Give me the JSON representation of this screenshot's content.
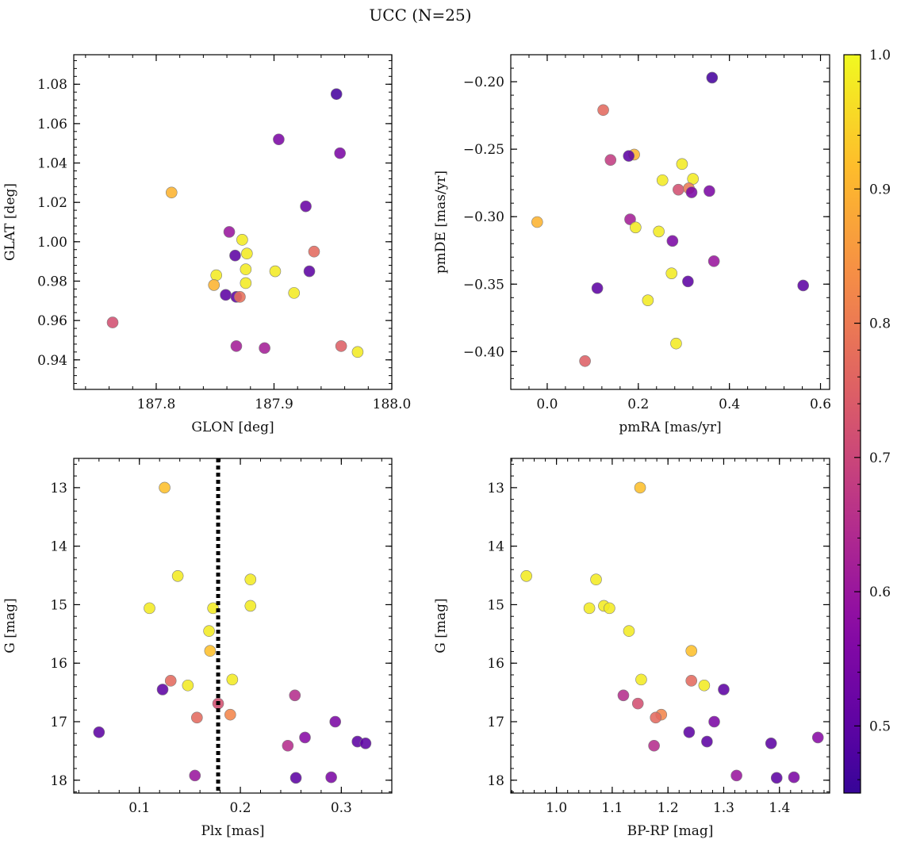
{
  "figure": {
    "title": "UCC (N=25)"
  },
  "colorbar": {
    "min": 0.45,
    "max": 1.0,
    "ticks": [
      0.5,
      0.6,
      0.7,
      0.8,
      0.9,
      1.0
    ],
    "tick_labels": [
      "0.5",
      "0.6",
      "0.7",
      "0.8",
      "0.9",
      "1.0"
    ],
    "colormap": "plasma"
  },
  "chart_data": [
    {
      "type": "scatter",
      "panel": "top-left",
      "xlabel": "GLON [deg]",
      "ylabel": "GLAT [deg]",
      "xlim": [
        187.73,
        188.0
      ],
      "ylim": [
        0.925,
        1.095
      ],
      "xticks": [
        187.8,
        187.9,
        188.0
      ],
      "xtick_labels": [
        "187.8",
        "187.9",
        "188.0"
      ],
      "yticks": [
        0.94,
        0.96,
        0.98,
        1.0,
        1.02,
        1.04,
        1.06,
        1.08
      ],
      "ytick_labels": [
        "0.94",
        "0.96",
        "0.98",
        "1.00",
        "1.02",
        "1.04",
        "1.06",
        "1.08"
      ],
      "reverse_y": false,
      "vline": null,
      "points": [
        {
          "x": 187.953,
          "y": 1.075,
          "c": 0.47
        },
        {
          "x": 187.904,
          "y": 1.052,
          "c": 0.55
        },
        {
          "x": 187.956,
          "y": 1.045,
          "c": 0.55
        },
        {
          "x": 187.813,
          "y": 1.025,
          "c": 0.9
        },
        {
          "x": 187.927,
          "y": 1.018,
          "c": 0.52
        },
        {
          "x": 187.862,
          "y": 1.005,
          "c": 0.6
        },
        {
          "x": 187.873,
          "y": 1.001,
          "c": 0.98
        },
        {
          "x": 187.934,
          "y": 0.995,
          "c": 0.77
        },
        {
          "x": 187.867,
          "y": 0.993,
          "c": 0.5
        },
        {
          "x": 187.877,
          "y": 0.994,
          "c": 0.98
        },
        {
          "x": 187.876,
          "y": 0.986,
          "c": 0.98
        },
        {
          "x": 187.901,
          "y": 0.985,
          "c": 0.98
        },
        {
          "x": 187.93,
          "y": 0.985,
          "c": 0.5
        },
        {
          "x": 187.851,
          "y": 0.983,
          "c": 0.98
        },
        {
          "x": 187.849,
          "y": 0.978,
          "c": 0.9
        },
        {
          "x": 187.876,
          "y": 0.979,
          "c": 0.98
        },
        {
          "x": 187.917,
          "y": 0.974,
          "c": 0.98
        },
        {
          "x": 187.859,
          "y": 0.973,
          "c": 0.5
        },
        {
          "x": 187.868,
          "y": 0.972,
          "c": 0.5
        },
        {
          "x": 187.871,
          "y": 0.972,
          "c": 0.78
        },
        {
          "x": 187.763,
          "y": 0.959,
          "c": 0.72
        },
        {
          "x": 187.868,
          "y": 0.947,
          "c": 0.62
        },
        {
          "x": 187.892,
          "y": 0.946,
          "c": 0.62
        },
        {
          "x": 187.957,
          "y": 0.947,
          "c": 0.75
        },
        {
          "x": 187.971,
          "y": 0.944,
          "c": 0.98
        }
      ]
    },
    {
      "type": "scatter",
      "panel": "top-right",
      "xlabel": "pmRA [mas/yr]",
      "ylabel": "pmDE [mas/yr]",
      "xlim": [
        -0.08,
        0.62
      ],
      "ylim": [
        -0.428,
        -0.18
      ],
      "xticks": [
        0.0,
        0.2,
        0.4,
        0.6
      ],
      "xtick_labels": [
        "0.0",
        "0.2",
        "0.4",
        "0.6"
      ],
      "yticks": [
        -0.4,
        -0.35,
        -0.3,
        -0.25,
        -0.2
      ],
      "ytick_labels": [
        "−0.40",
        "−0.35",
        "−0.30",
        "−0.25",
        "−0.20"
      ],
      "reverse_y": false,
      "vline": null,
      "points": [
        {
          "x": 0.362,
          "y": -0.197,
          "c": 0.47
        },
        {
          "x": 0.123,
          "y": -0.221,
          "c": 0.77
        },
        {
          "x": 0.191,
          "y": -0.254,
          "c": 0.9
        },
        {
          "x": 0.179,
          "y": -0.255,
          "c": 0.5
        },
        {
          "x": 0.139,
          "y": -0.258,
          "c": 0.68
        },
        {
          "x": 0.296,
          "y": -0.261,
          "c": 0.98
        },
        {
          "x": 0.32,
          "y": -0.272,
          "c": 0.98
        },
        {
          "x": 0.253,
          "y": -0.273,
          "c": 0.98
        },
        {
          "x": 0.288,
          "y": -0.28,
          "c": 0.72
        },
        {
          "x": 0.311,
          "y": -0.279,
          "c": 0.8
        },
        {
          "x": 0.317,
          "y": -0.282,
          "c": 0.55
        },
        {
          "x": 0.356,
          "y": -0.281,
          "c": 0.55
        },
        {
          "x": 0.182,
          "y": -0.302,
          "c": 0.62
        },
        {
          "x": -0.022,
          "y": -0.304,
          "c": 0.9
        },
        {
          "x": 0.194,
          "y": -0.308,
          "c": 0.98
        },
        {
          "x": 0.245,
          "y": -0.311,
          "c": 0.98
        },
        {
          "x": 0.275,
          "y": -0.318,
          "c": 0.55
        },
        {
          "x": 0.366,
          "y": -0.333,
          "c": 0.6
        },
        {
          "x": 0.273,
          "y": -0.342,
          "c": 0.98
        },
        {
          "x": 0.309,
          "y": -0.348,
          "c": 0.5
        },
        {
          "x": 0.562,
          "y": -0.351,
          "c": 0.5
        },
        {
          "x": 0.11,
          "y": -0.353,
          "c": 0.5
        },
        {
          "x": 0.221,
          "y": -0.362,
          "c": 0.98
        },
        {
          "x": 0.283,
          "y": -0.394,
          "c": 0.98
        },
        {
          "x": 0.083,
          "y": -0.407,
          "c": 0.75
        }
      ]
    },
    {
      "type": "scatter",
      "panel": "bottom-left",
      "xlabel": "Plx [mas]",
      "ylabel": "G [mag]",
      "xlim": [
        0.035,
        0.35
      ],
      "ylim": [
        12.5,
        18.22
      ],
      "xticks": [
        0.1,
        0.2,
        0.3
      ],
      "xtick_labels": [
        "0.1",
        "0.2",
        "0.3"
      ],
      "yticks": [
        13,
        14,
        15,
        16,
        17,
        18
      ],
      "ytick_labels": [
        "13",
        "14",
        "15",
        "16",
        "17",
        "18"
      ],
      "reverse_y": true,
      "vline": 0.178,
      "points": [
        {
          "x": 0.125,
          "y": 13.0,
          "c": 0.92
        },
        {
          "x": 0.138,
          "y": 14.51,
          "c": 0.98
        },
        {
          "x": 0.21,
          "y": 14.57,
          "c": 0.98
        },
        {
          "x": 0.21,
          "y": 15.02,
          "c": 0.98
        },
        {
          "x": 0.11,
          "y": 15.06,
          "c": 0.98
        },
        {
          "x": 0.173,
          "y": 15.06,
          "c": 0.98
        },
        {
          "x": 0.169,
          "y": 15.45,
          "c": 0.98
        },
        {
          "x": 0.17,
          "y": 15.79,
          "c": 0.92
        },
        {
          "x": 0.192,
          "y": 16.28,
          "c": 0.98
        },
        {
          "x": 0.131,
          "y": 16.3,
          "c": 0.77
        },
        {
          "x": 0.148,
          "y": 16.38,
          "c": 0.98
        },
        {
          "x": 0.123,
          "y": 16.45,
          "c": 0.5
        },
        {
          "x": 0.254,
          "y": 16.55,
          "c": 0.65
        },
        {
          "x": 0.178,
          "y": 16.69,
          "c": 0.72
        },
        {
          "x": 0.19,
          "y": 16.88,
          "c": 0.82
        },
        {
          "x": 0.157,
          "y": 16.93,
          "c": 0.77
        },
        {
          "x": 0.294,
          "y": 17.0,
          "c": 0.55
        },
        {
          "x": 0.06,
          "y": 17.18,
          "c": 0.5
        },
        {
          "x": 0.264,
          "y": 17.27,
          "c": 0.57
        },
        {
          "x": 0.316,
          "y": 17.34,
          "c": 0.5
        },
        {
          "x": 0.324,
          "y": 17.37,
          "c": 0.5
        },
        {
          "x": 0.247,
          "y": 17.41,
          "c": 0.65
        },
        {
          "x": 0.155,
          "y": 17.92,
          "c": 0.6
        },
        {
          "x": 0.255,
          "y": 17.96,
          "c": 0.5
        },
        {
          "x": 0.29,
          "y": 17.95,
          "c": 0.55
        }
      ]
    },
    {
      "type": "scatter",
      "panel": "bottom-right",
      "xlabel": "BP-RP [mag]",
      "ylabel": "G [mag]",
      "xlim": [
        0.918,
        1.49
      ],
      "ylim": [
        12.5,
        18.22
      ],
      "xticks": [
        1.0,
        1.1,
        1.2,
        1.3,
        1.4
      ],
      "xtick_labels": [
        "1.0",
        "1.1",
        "1.2",
        "1.3",
        "1.4"
      ],
      "yticks": [
        13,
        14,
        15,
        16,
        17,
        18
      ],
      "ytick_labels": [
        "13",
        "14",
        "15",
        "16",
        "17",
        "18"
      ],
      "reverse_y": true,
      "vline": null,
      "points": [
        {
          "x": 1.15,
          "y": 13.0,
          "c": 0.92
        },
        {
          "x": 0.946,
          "y": 14.51,
          "c": 0.98
        },
        {
          "x": 1.071,
          "y": 14.57,
          "c": 0.98
        },
        {
          "x": 1.059,
          "y": 15.06,
          "c": 0.98
        },
        {
          "x": 1.085,
          "y": 15.02,
          "c": 0.98
        },
        {
          "x": 1.095,
          "y": 15.06,
          "c": 0.98
        },
        {
          "x": 1.13,
          "y": 15.45,
          "c": 0.98
        },
        {
          "x": 1.242,
          "y": 15.79,
          "c": 0.92
        },
        {
          "x": 1.152,
          "y": 16.28,
          "c": 0.98
        },
        {
          "x": 1.242,
          "y": 16.3,
          "c": 0.77
        },
        {
          "x": 1.265,
          "y": 16.38,
          "c": 0.98
        },
        {
          "x": 1.3,
          "y": 16.45,
          "c": 0.5
        },
        {
          "x": 1.12,
          "y": 16.55,
          "c": 0.65
        },
        {
          "x": 1.146,
          "y": 16.69,
          "c": 0.72
        },
        {
          "x": 1.188,
          "y": 16.88,
          "c": 0.82
        },
        {
          "x": 1.178,
          "y": 16.93,
          "c": 0.77
        },
        {
          "x": 1.283,
          "y": 17.0,
          "c": 0.55
        },
        {
          "x": 1.238,
          "y": 17.18,
          "c": 0.5
        },
        {
          "x": 1.469,
          "y": 17.27,
          "c": 0.57
        },
        {
          "x": 1.27,
          "y": 17.34,
          "c": 0.5
        },
        {
          "x": 1.385,
          "y": 17.37,
          "c": 0.5
        },
        {
          "x": 1.175,
          "y": 17.41,
          "c": 0.65
        },
        {
          "x": 1.323,
          "y": 17.92,
          "c": 0.6
        },
        {
          "x": 1.395,
          "y": 17.96,
          "c": 0.5
        },
        {
          "x": 1.426,
          "y": 17.95,
          "c": 0.55
        }
      ]
    }
  ]
}
